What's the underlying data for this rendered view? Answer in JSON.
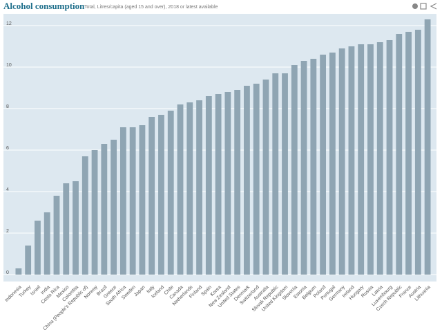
{
  "chart_data": {
    "type": "bar",
    "title": "Alcohol consumption",
    "subtitle": "Total, Litres/capita (aged 15 and over), 2018 or latest available",
    "categories": [
      "Indonesia",
      "Turkey",
      "Israel",
      "India",
      "Costa Rica",
      "Mexico",
      "Colombia",
      "China (People's Republic of)",
      "Norway",
      "Brazil",
      "Greece",
      "South Africa",
      "Sweden",
      "Japan",
      "Italy",
      "Iceland",
      "Chile",
      "Canada",
      "Netherlands",
      "Finland",
      "Spain",
      "Korea",
      "New Zealand",
      "United States",
      "Denmark",
      "Switzerland",
      "Australia",
      "Slovak Republic",
      "United Kingdom",
      "Slovenia",
      "Estonia",
      "Belgium",
      "Poland",
      "Portugal",
      "Germany",
      "Ireland",
      "Hungary",
      "Russia",
      "Latvia",
      "Luxembourg",
      "Czech Republic",
      "France",
      "Austria",
      "Lithuania"
    ],
    "values": [
      0.3,
      1.4,
      2.6,
      3.0,
      3.8,
      4.4,
      4.5,
      5.7,
      6.0,
      6.3,
      6.5,
      7.1,
      7.1,
      7.2,
      7.6,
      7.7,
      7.9,
      8.2,
      8.3,
      8.4,
      8.6,
      8.7,
      8.8,
      8.9,
      9.1,
      9.2,
      9.4,
      9.7,
      9.7,
      10.1,
      10.3,
      10.4,
      10.6,
      10.7,
      10.9,
      11.0,
      11.1,
      11.1,
      11.2,
      11.3,
      11.6,
      11.7,
      11.8,
      12.3
    ],
    "color": "#8fa5b3",
    "ylim": [
      0,
      12.5
    ],
    "yticks": [
      0,
      2,
      4,
      6,
      8,
      10,
      12
    ],
    "grid": true
  }
}
